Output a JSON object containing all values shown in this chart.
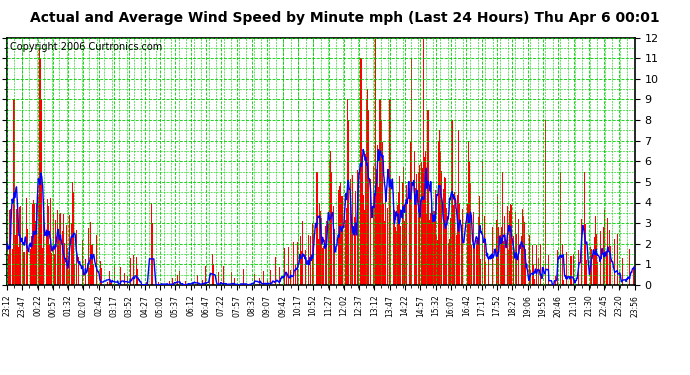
{
  "title": "Actual and Average Wind Speed by Minute mph (Last 24 Hours) Thu Apr 6 00:01",
  "copyright": "Copyright 2006 Curtronics.com",
  "ylim": [
    0.0,
    12.0
  ],
  "yticks": [
    0.0,
    1.0,
    2.0,
    3.0,
    4.0,
    5.0,
    6.0,
    7.0,
    8.0,
    9.0,
    10.0,
    11.0,
    12.0
  ],
  "xtick_labels": [
    "23:12",
    "23:47",
    "00:22",
    "00:57",
    "01:32",
    "02:07",
    "02:42",
    "03:17",
    "03:52",
    "04:27",
    "05:02",
    "05:37",
    "06:12",
    "06:47",
    "07:22",
    "07:57",
    "08:32",
    "09:07",
    "09:42",
    "10:17",
    "10:52",
    "11:27",
    "12:02",
    "12:37",
    "13:12",
    "13:47",
    "14:22",
    "14:57",
    "15:32",
    "16:07",
    "16:42",
    "17:17",
    "17:52",
    "18:27",
    "19:06",
    "19:55",
    "20:46",
    "21:10",
    "21:30",
    "22:45",
    "23:20",
    "23:56"
  ],
  "bar_color": "#FF0000",
  "line_color": "#0000FF",
  "grid_color": "#00CC00",
  "bg_color": "#FFFFFF",
  "title_fontsize": 10,
  "copyright_fontsize": 7,
  "n_minutes": 1440
}
